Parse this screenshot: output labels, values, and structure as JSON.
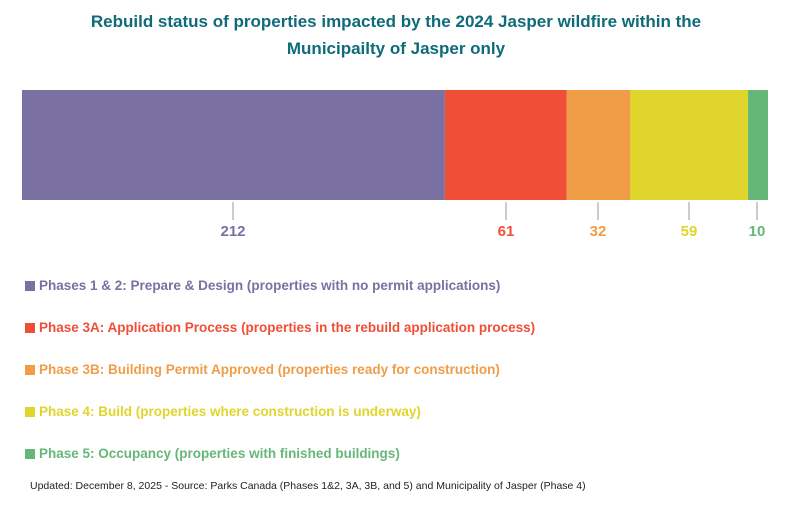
{
  "chart_data": {
    "type": "bar",
    "orientation": "horizontal-stacked-100",
    "title": "Rebuild status of properties impacted by the 2024 Jasper wildfire within the Municipailty of Jasper only",
    "categories": [
      "Rebuild status"
    ],
    "series": [
      {
        "name": "Phases 1 & 2: Prepare & Design (properties with no permit applications)",
        "value": 212,
        "label": "212",
        "color": "#7a70a2"
      },
      {
        "name": "Phase 3A: Application Process (properties in the rebuild application process)",
        "value": 61,
        "label": "61",
        "color": "#f04e37"
      },
      {
        "name": "Phase 3B: Building Permit Approved (properties ready for construction)",
        "value": 32,
        "label": "32",
        "color": "#f09d48"
      },
      {
        "name": "Phase 4: Build (properties where construction is underway)",
        "value": 59,
        "label": "59",
        "color": "#e0d52c"
      },
      {
        "name": "Phase 5: Occupancy (properties with finished buildings)",
        "value": 10,
        "label": "10",
        "color": "#66b777"
      }
    ],
    "legend": "bottom-left",
    "grid": false
  },
  "footnote": "Updated: December 8, 2025  -  Source: Parks Canada (Phases 1&2, 3A, 3B, and 5) and Municipality of Jasper (Phase 4)"
}
